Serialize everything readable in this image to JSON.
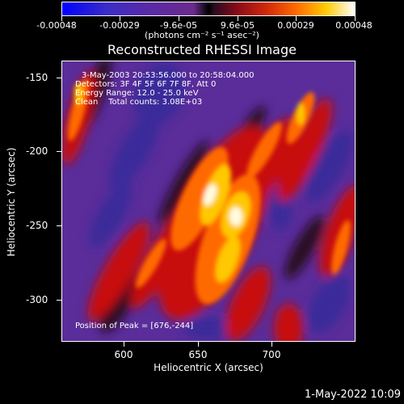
{
  "colorbar": {
    "ticks": [
      "-0.00048",
      "-0.00029",
      "-9.6e-05",
      "9.6e-05",
      "0.00029",
      "0.00048"
    ],
    "units": "(photons cm⁻² s⁻¹ asec⁻²)"
  },
  "title": "Reconstructed RHESSI Image",
  "annotations": {
    "time": "3-May-2003 20:53:56.000 to 20:58:04.000",
    "detectors": "Detectors: 3F 4F 5F 6F 7F 8F, Att 0",
    "energy": "Energy Range: 12.0 - 25.0 keV",
    "clean": "Clean    Total counts: 3.08E+03",
    "peak": "Position of Peak = [676,-244]"
  },
  "x_axis": {
    "title": "Heliocentric X (arcsec)",
    "ticks": [
      "600",
      "650",
      "700"
    ]
  },
  "y_axis": {
    "title": "Heliocentric Y (arcsec)",
    "ticks": [
      "-150",
      "-200",
      "-250",
      "-300"
    ]
  },
  "footer": {
    "date": "1-May-2022 10:09"
  },
  "image_colors": {
    "background": "#5a2d9a",
    "deep": "#3b2a9a",
    "dark": "#2a0a20",
    "red": "#c81010",
    "orange": "#ff6a00",
    "yellow": "#ffc800",
    "white": "#fffbe0"
  }
}
